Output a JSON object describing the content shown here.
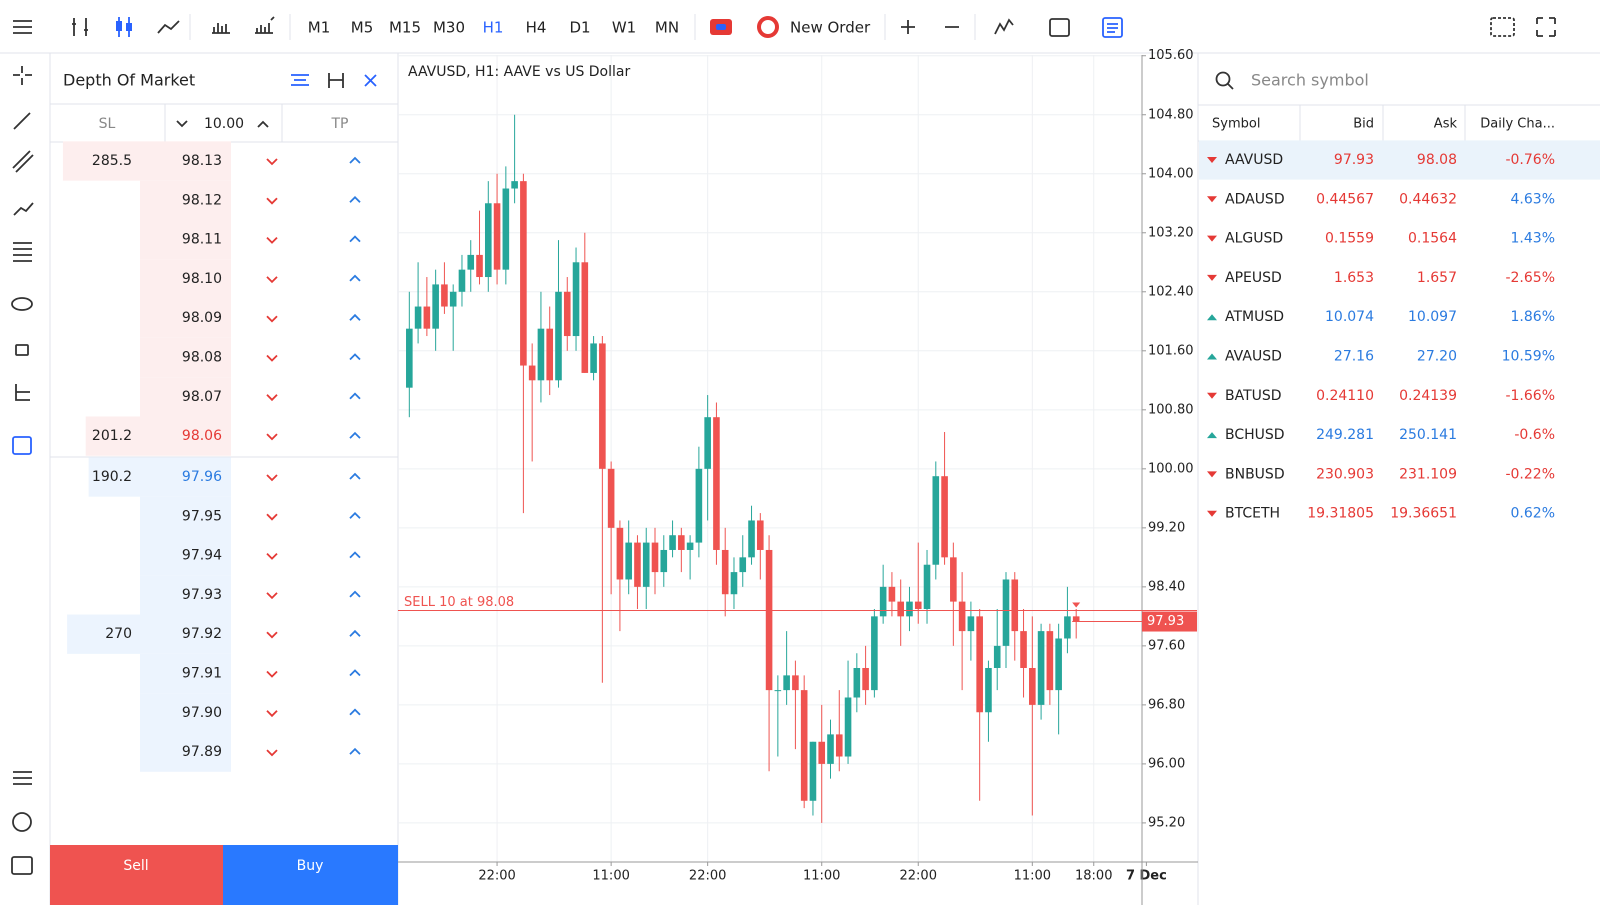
{
  "toolbar": {
    "timeframes": [
      {
        "label": "M1"
      },
      {
        "label": "M5"
      },
      {
        "label": "M15"
      },
      {
        "label": "M30"
      },
      {
        "label": "H1",
        "selected": true
      },
      {
        "label": "H4"
      },
      {
        "label": "D1"
      },
      {
        "label": "W1"
      },
      {
        "label": "MN"
      }
    ],
    "new_order": "New Order"
  },
  "dom": {
    "title": "Depth Of Market",
    "sl": "SL",
    "tp": "TP",
    "volume": "10.00",
    "asks": [
      {
        "size": 285.5,
        "price": "98.13"
      },
      {
        "price": "98.12"
      },
      {
        "price": "98.11"
      },
      {
        "price": "98.10"
      },
      {
        "price": "98.09"
      },
      {
        "price": "98.08"
      },
      {
        "price": "98.07"
      },
      {
        "size": 201.2,
        "price": "98.06"
      }
    ],
    "bids": [
      {
        "size": 190.2,
        "price": "97.96"
      },
      {
        "price": "97.95"
      },
      {
        "price": "97.94"
      },
      {
        "price": "97.93"
      },
      {
        "size": 270,
        "price": "97.92"
      },
      {
        "price": "97.91"
      },
      {
        "price": "97.90"
      },
      {
        "price": "97.89"
      }
    ],
    "sell": "Sell",
    "buy": "Buy"
  },
  "chart": {
    "type": "candlestick",
    "title": "AAVUSD, H1: AAVE vs US Dollar",
    "up_color": "#26a69a",
    "down_color": "#ef5350",
    "ylim": [
      94.67,
      105.61
    ],
    "xlim": [
      -1.29,
      83.5
    ],
    "yticks": [
      {
        "value": 105.6,
        "label": "105.60"
      },
      {
        "value": 104.8,
        "label": "104.80"
      },
      {
        "value": 104,
        "label": "104.00"
      },
      {
        "value": 103.2,
        "label": "103.20"
      },
      {
        "value": 102.4,
        "label": "102.40"
      },
      {
        "value": 101.6,
        "label": "101.60"
      },
      {
        "value": 100.8,
        "label": "100.80"
      },
      {
        "value": 100,
        "label": "100.00"
      },
      {
        "value": 99.2,
        "label": "99.20"
      },
      {
        "value": 98.4,
        "label": "98.40"
      },
      {
        "value": 97.6,
        "label": "97.60"
      },
      {
        "value": 96.8,
        "label": "96.80"
      },
      {
        "value": 96,
        "label": "96.00"
      },
      {
        "value": 95.2,
        "label": "95.20"
      }
    ],
    "xticks": [
      {
        "value": 10,
        "label": "22:00"
      },
      {
        "value": 23,
        "label": "11:00"
      },
      {
        "value": 34,
        "label": "22:00"
      },
      {
        "value": 47,
        "label": "11:00"
      },
      {
        "value": 58,
        "label": "22:00"
      },
      {
        "value": 71,
        "label": "11:00"
      },
      {
        "value": 78,
        "label": "18:00"
      },
      {
        "value": 84,
        "label": "7 Dec"
      }
    ],
    "order_line": {
      "value": 98.08,
      "label": "SELL 10 at 98.08"
    },
    "bid_line": {
      "value": 97.93,
      "label": "97.93"
    },
    "ohlc": [
      [
        101.1,
        102.4,
        100.7,
        101.9
      ],
      [
        101.9,
        102.8,
        101.7,
        102.2
      ],
      [
        102.2,
        102.6,
        101.8,
        101.9
      ],
      [
        101.9,
        102.7,
        101.6,
        102.5
      ],
      [
        102.5,
        102.8,
        102.1,
        102.2
      ],
      [
        102.2,
        102.5,
        101.6,
        102.4
      ],
      [
        102.4,
        102.9,
        102.2,
        102.7
      ],
      [
        102.7,
        103.1,
        102.4,
        102.9
      ],
      [
        102.9,
        103.5,
        102.5,
        102.6
      ],
      [
        102.6,
        103.9,
        102.4,
        103.6
      ],
      [
        103.6,
        104.0,
        102.5,
        102.7
      ],
      [
        102.7,
        104.1,
        102.5,
        103.8
      ],
      [
        103.8,
        104.8,
        103.6,
        103.9
      ],
      [
        103.9,
        104.0,
        99.4,
        101.4
      ],
      [
        101.4,
        101.7,
        100.1,
        101.2
      ],
      [
        101.2,
        102.4,
        100.9,
        101.9
      ],
      [
        101.9,
        102.2,
        101.0,
        101.2
      ],
      [
        101.2,
        103.1,
        101.1,
        102.4
      ],
      [
        102.4,
        102.6,
        101.6,
        101.8
      ],
      [
        101.8,
        103.0,
        101.6,
        102.8
      ],
      [
        102.8,
        103.2,
        101.3,
        101.3
      ],
      [
        101.3,
        101.8,
        101.2,
        101.7
      ],
      [
        101.7,
        101.8,
        97.1,
        100.0
      ],
      [
        100.0,
        100.1,
        98.3,
        99.2
      ],
      [
        99.2,
        99.3,
        97.8,
        98.5
      ],
      [
        98.5,
        99.3,
        98.3,
        99.0
      ],
      [
        99.0,
        99.1,
        98.1,
        98.4
      ],
      [
        98.4,
        99.2,
        98.1,
        99.0
      ],
      [
        99.0,
        99.2,
        98.3,
        98.6
      ],
      [
        98.6,
        99.1,
        98.4,
        98.9
      ],
      [
        98.9,
        99.3,
        98.8,
        99.1
      ],
      [
        99.1,
        99.2,
        98.6,
        98.9
      ],
      [
        98.9,
        99.1,
        98.5,
        99.0
      ],
      [
        99.0,
        100.3,
        98.8,
        100.0
      ],
      [
        100.0,
        101.0,
        99.3,
        100.7
      ],
      [
        100.7,
        100.9,
        98.7,
        98.9
      ],
      [
        98.9,
        99.2,
        98.0,
        98.3
      ],
      [
        98.3,
        98.8,
        98.1,
        98.6
      ],
      [
        98.6,
        99.1,
        98.4,
        98.8
      ],
      [
        98.8,
        99.5,
        98.7,
        99.3
      ],
      [
        99.3,
        99.4,
        98.5,
        98.9
      ],
      [
        98.9,
        99.1,
        95.9,
        97.0
      ],
      [
        97.0,
        97.2,
        96.1,
        97.0
      ],
      [
        97.0,
        97.8,
        96.8,
        97.2
      ],
      [
        97.2,
        97.4,
        96.2,
        97.0
      ],
      [
        97.0,
        97.2,
        95.4,
        95.5
      ],
      [
        95.5,
        96.3,
        95.3,
        96.3
      ],
      [
        96.3,
        96.8,
        95.2,
        96.0
      ],
      [
        96.0,
        96.6,
        95.8,
        96.4
      ],
      [
        96.4,
        97.0,
        95.9,
        96.1
      ],
      [
        96.1,
        97.4,
        96.0,
        96.9
      ],
      [
        96.9,
        97.5,
        96.7,
        97.3
      ],
      [
        97.3,
        97.6,
        96.8,
        97.0
      ],
      [
        97.0,
        98.1,
        96.9,
        98.0
      ],
      [
        98.0,
        98.7,
        97.9,
        98.4
      ],
      [
        98.4,
        98.6,
        98.0,
        98.2
      ],
      [
        98.2,
        98.5,
        97.6,
        98.0
      ],
      [
        98.0,
        98.4,
        97.8,
        98.2
      ],
      [
        98.2,
        99.0,
        97.9,
        98.1
      ],
      [
        98.1,
        98.9,
        97.9,
        98.7
      ],
      [
        98.7,
        100.1,
        98.5,
        99.9
      ],
      [
        99.9,
        100.5,
        98.7,
        98.8
      ],
      [
        98.8,
        99.0,
        97.6,
        98.2
      ],
      [
        98.2,
        98.6,
        97.0,
        97.8
      ],
      [
        97.8,
        98.2,
        97.4,
        98.0
      ],
      [
        98.0,
        98.1,
        95.5,
        96.7
      ],
      [
        96.7,
        97.4,
        96.3,
        97.3
      ],
      [
        97.3,
        98.1,
        97.0,
        97.6
      ],
      [
        97.6,
        98.6,
        97.3,
        98.5
      ],
      [
        98.5,
        98.6,
        97.4,
        97.8
      ],
      [
        97.8,
        98.1,
        96.9,
        97.3
      ],
      [
        97.3,
        98.0,
        95.3,
        96.8
      ],
      [
        96.8,
        97.9,
        96.6,
        97.8
      ],
      [
        97.8,
        97.9,
        96.8,
        97.0
      ],
      [
        97.0,
        97.9,
        96.4,
        97.7
      ],
      [
        97.7,
        98.4,
        97.5,
        98.0
      ],
      [
        98.0,
        98.1,
        97.7,
        97.93
      ]
    ]
  },
  "watchlist": {
    "search_placeholder": "Search symbol",
    "columns": [
      "Symbol",
      "Bid",
      "Ask",
      "Daily Cha..."
    ],
    "rows": [
      {
        "direction": "down",
        "symbol": "AAVUSD",
        "bid": "97.93",
        "ask": "98.08",
        "change": "-0.76%",
        "selected": true
      },
      {
        "direction": "down",
        "symbol": "ADAUSD",
        "bid": "0.44567",
        "ask": "0.44632",
        "change": "4.63%"
      },
      {
        "direction": "down",
        "symbol": "ALGUSD",
        "bid": "0.1559",
        "ask": "0.1564",
        "change": "1.43%"
      },
      {
        "direction": "down",
        "symbol": "APEUSD",
        "bid": "1.653",
        "ask": "1.657",
        "change": "-2.65%"
      },
      {
        "direction": "up",
        "symbol": "ATMUSD",
        "bid": "10.074",
        "ask": "10.097",
        "change": "1.86%"
      },
      {
        "direction": "up",
        "symbol": "AVAUSD",
        "bid": "27.16",
        "ask": "27.20",
        "change": "10.59%"
      },
      {
        "direction": "down",
        "symbol": "BATUSD",
        "bid": "0.24110",
        "ask": "0.24139",
        "change": "-1.66%"
      },
      {
        "direction": "up",
        "symbol": "BCHUSD",
        "bid": "249.281",
        "ask": "250.141",
        "change": "-0.6%"
      },
      {
        "direction": "down",
        "symbol": "BNBUSD",
        "bid": "230.903",
        "ask": "231.109",
        "change": "-0.22%"
      },
      {
        "direction": "down",
        "symbol": "BTCETH",
        "bid": "19.31805",
        "ask": "19.36651",
        "change": "0.62%"
      }
    ]
  }
}
